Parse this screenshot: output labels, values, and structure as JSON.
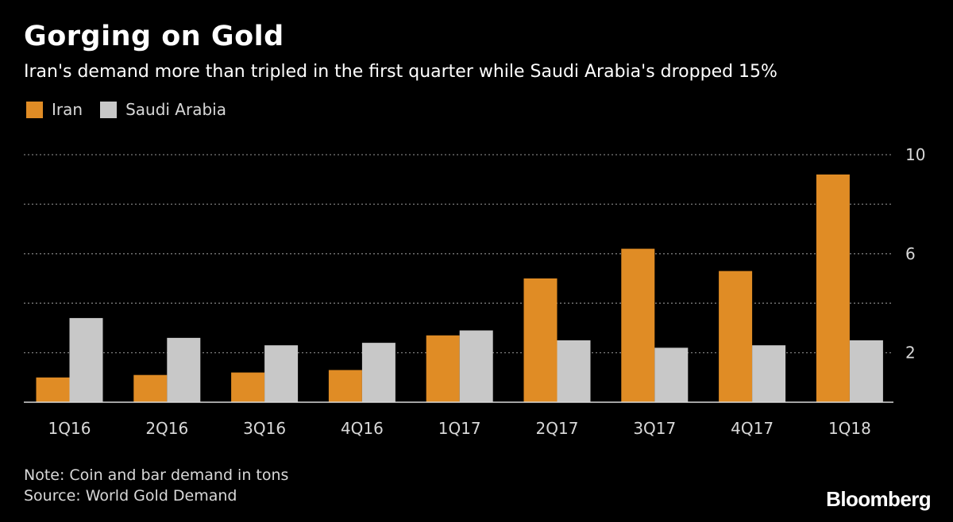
{
  "header": {
    "title": "Gorging on Gold",
    "subtitle": "Iran's demand more than tripled in the first quarter while Saudi Arabia's dropped 15%"
  },
  "legend": [
    {
      "label": "Iran",
      "color": "#e08c25"
    },
    {
      "label": "Saudi Arabia",
      "color": "#c8c8c8"
    }
  ],
  "chart_data": {
    "type": "bar",
    "categories": [
      "1Q16",
      "2Q16",
      "3Q16",
      "4Q16",
      "1Q17",
      "2Q17",
      "3Q17",
      "4Q17",
      "1Q18"
    ],
    "series": [
      {
        "name": "Iran",
        "color": "#e08c25",
        "values": [
          1.0,
          1.1,
          1.2,
          1.3,
          2.7,
          5.0,
          6.2,
          5.3,
          9.2
        ]
      },
      {
        "name": "Saudi Arabia",
        "color": "#c8c8c8",
        "values": [
          3.4,
          2.6,
          2.3,
          2.4,
          2.9,
          2.5,
          2.2,
          2.3,
          2.5
        ]
      }
    ],
    "ylim": [
      0,
      10
    ],
    "y_tick_labels": [
      2,
      6,
      10
    ],
    "y_gridlines": [
      2,
      4,
      6,
      8,
      10
    ],
    "grid": true,
    "legend_position": "top-left",
    "y_axis_side": "right"
  },
  "footer": {
    "note": "Note: Coin and bar demand in tons",
    "source": "Source: World Gold Demand",
    "brand": "Bloomberg"
  }
}
